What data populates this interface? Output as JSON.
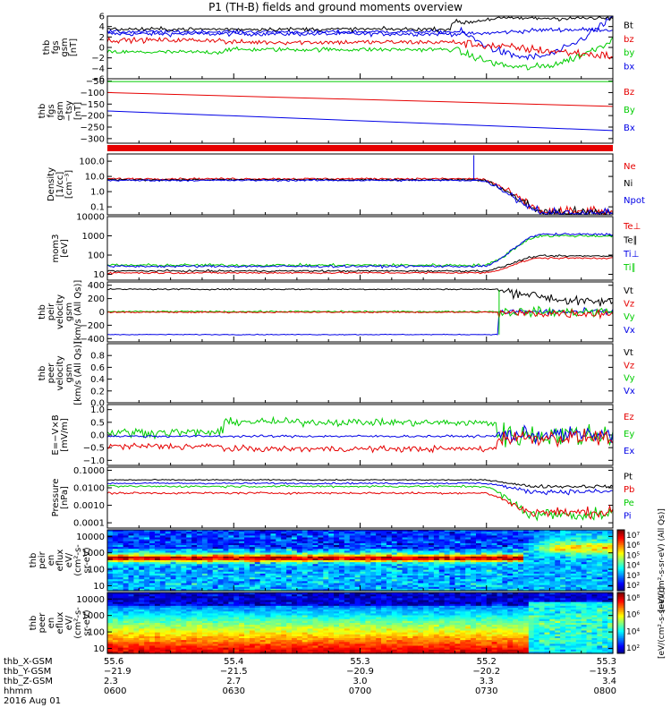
{
  "title": "P1 (TH-B) fields and ground moments overview",
  "colors": {
    "black": "#000000",
    "red": "#e60000",
    "green": "#00cc00",
    "blue": "#0000e6"
  },
  "chart_data": [
    {
      "type": "line",
      "ylabel": [
        "thb",
        "fgs",
        "gsm",
        "[nT]"
      ],
      "yticks": [
        "6",
        "4",
        "2",
        "0",
        "−2",
        "−4",
        "−6"
      ],
      "ylim": [
        -6,
        6
      ],
      "legend": [
        {
          "name": "Bt",
          "color": "black"
        },
        {
          "name": "bz",
          "color": "red"
        },
        {
          "name": "by",
          "color": "green"
        },
        {
          "name": "bx",
          "color": "blue"
        }
      ]
    },
    {
      "type": "line",
      "ylabel": [
        "thb",
        "fgs",
        "gsm",
        "−tsy",
        "[nT]"
      ],
      "yticks": [
        "−50",
        "−100",
        "−150",
        "−200",
        "−250",
        "−300"
      ],
      "ylim": [
        -320,
        -40
      ],
      "legend": [
        {
          "name": "Bz",
          "color": "red"
        },
        {
          "name": "By",
          "color": "green"
        },
        {
          "name": "Bx",
          "color": "blue"
        }
      ],
      "series": [
        {
          "name": "Bz",
          "x": [
            0,
            1
          ],
          "values": [
            -100,
            -160
          ]
        },
        {
          "name": "By",
          "x": [
            0,
            1
          ],
          "values": [
            -52,
            -52
          ]
        },
        {
          "name": "Bx",
          "x": [
            0,
            1
          ],
          "values": [
            -180,
            -265
          ]
        }
      ]
    },
    {
      "type": "line",
      "ylabel": [
        "Density",
        "[1/cc]",
        "[cm⁻³]"
      ],
      "yticks": [
        "100.0",
        "10.0",
        "1.0",
        "0.1"
      ],
      "yscale": "log",
      "ylim": [
        0.03,
        300
      ],
      "legend": [
        {
          "name": "Ne",
          "color": "red"
        },
        {
          "name": "Ni",
          "color": "black"
        },
        {
          "name": "Npot",
          "color": "blue"
        }
      ]
    },
    {
      "type": "line",
      "ylabel": [
        "mom3",
        "[eV]"
      ],
      "yticks": [
        "10000",
        "1000",
        "100",
        "10"
      ],
      "yscale": "log",
      "ylim": [
        5,
        10000
      ],
      "legend": [
        {
          "name": "Te⊥",
          "color": "red"
        },
        {
          "name": "Te∥",
          "color": "black"
        },
        {
          "name": "Ti⊥",
          "color": "blue"
        },
        {
          "name": "Ti∥",
          "color": "green"
        }
      ]
    },
    {
      "type": "line",
      "ylabel": [
        "thb",
        "peir",
        "velocity",
        "gsm",
        "[km/s (All Qs)]"
      ],
      "yticks": [
        "400",
        "200",
        "0",
        "−200",
        "−400"
      ],
      "ylim": [
        -450,
        450
      ],
      "legend": [
        {
          "name": "Vt",
          "color": "black"
        },
        {
          "name": "Vz",
          "color": "red"
        },
        {
          "name": "Vy",
          "color": "green"
        },
        {
          "name": "Vx",
          "color": "blue"
        }
      ]
    },
    {
      "type": "line",
      "ylabel": [
        "thb",
        "peer",
        "velocity",
        "gsm",
        "[km/s (All Qs)]"
      ],
      "yticks": [
        "0.8",
        "0.6",
        "0.4",
        "0.2",
        "0.0"
      ],
      "ylim": [
        0,
        1
      ],
      "legend": [
        {
          "name": "Vt",
          "color": "black"
        },
        {
          "name": "Vz",
          "color": "red"
        },
        {
          "name": "Vy",
          "color": "green"
        },
        {
          "name": "Vx",
          "color": "blue"
        }
      ]
    },
    {
      "type": "line",
      "ylabel": [
        "E=−V×B",
        "[mV/m]"
      ],
      "yticks": [
        "1.0",
        "0.5",
        "0.0",
        "−0.5",
        "−1.0"
      ],
      "ylim": [
        -1.2,
        1.2
      ],
      "legend": [
        {
          "name": "Ez",
          "color": "red"
        },
        {
          "name": "Ey",
          "color": "green"
        },
        {
          "name": "Ex",
          "color": "blue"
        }
      ]
    },
    {
      "type": "line",
      "ylabel": [
        "Pressure",
        "[nPa]"
      ],
      "yticks": [
        "0.1000",
        "0.0100",
        "0.0010",
        "0.0001"
      ],
      "yscale": "log",
      "ylim": [
        5e-05,
        0.15
      ],
      "legend": [
        {
          "name": "Pt",
          "color": "black"
        },
        {
          "name": "Pb",
          "color": "red"
        },
        {
          "name": "Pe",
          "color": "green"
        },
        {
          "name": "Pi",
          "color": "blue"
        }
      ]
    },
    {
      "type": "heatmap",
      "ylabel": [
        "thb",
        "peir",
        "en",
        "eflux",
        "eV/",
        "(cm²-s-",
        "sr-eV)"
      ],
      "yticks": [
        "10000",
        "1000",
        "100",
        "10"
      ],
      "yscale": "log",
      "ylim": [
        5,
        25000
      ],
      "colorbar": {
        "label": "[eV/(cm²-s-sr-eV) (All Qs)]",
        "ticks": [
          "10⁷",
          "10⁶",
          "10⁵",
          "10⁴",
          "10³",
          "10²"
        ]
      }
    },
    {
      "type": "heatmap",
      "ylabel": [
        "thb",
        "peer",
        "en",
        "eflux",
        "eV/",
        "(cm²-s-",
        "sr-eV)"
      ],
      "yticks": [
        "10000",
        "1000",
        "100",
        "10"
      ],
      "yscale": "log",
      "ylim": [
        5,
        25000
      ],
      "colorbar": {
        "label": "[eV/(cm²-s-sr-eV)]",
        "ticks": [
          "10⁸",
          "10⁶",
          "10⁴",
          "10²"
        ]
      }
    }
  ],
  "xaxis": {
    "row_labels": [
      "thb_X-GSM",
      "thb_Y-GSM",
      "thb_Z-GSM",
      "hhmm",
      "2016 Aug 01"
    ],
    "ticks": [
      {
        "x": 0,
        "values": [
          "55.6",
          "−21.9",
          "2.3",
          "0600"
        ]
      },
      {
        "x": 0.25,
        "values": [
          "55.4",
          "−21.5",
          "2.7",
          "0630"
        ]
      },
      {
        "x": 0.5,
        "values": [
          "55.3",
          "−20.9",
          "3.0",
          "0700"
        ]
      },
      {
        "x": 0.75,
        "values": [
          "55.2",
          "−20.2",
          "3.3",
          "0730"
        ]
      },
      {
        "x": 1,
        "values": [
          "55.3",
          "−19.5",
          "3.4",
          "0800"
        ]
      }
    ]
  }
}
